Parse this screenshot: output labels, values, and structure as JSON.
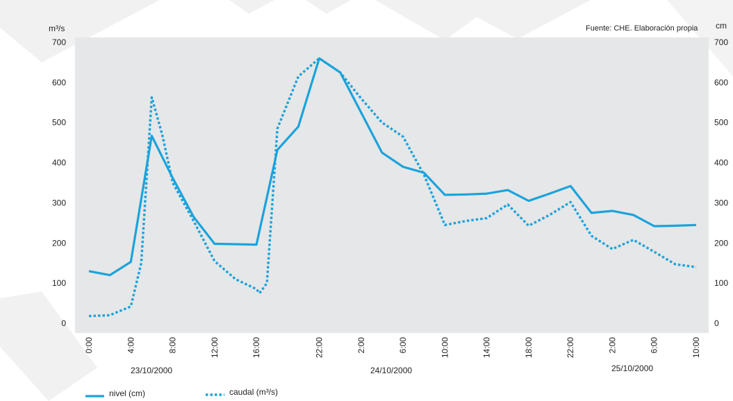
{
  "page": {
    "source": "Fuente: CHE. Elaboración propia"
  },
  "chart_data": {
    "type": "line",
    "left_axis_unit": "m³/s",
    "right_axis_unit": "cm",
    "ylim": [
      0,
      700
    ],
    "yticks": [
      0,
      100,
      200,
      300,
      400,
      500,
      600,
      700
    ],
    "x_tick_labels": [
      "0:00",
      "4:00",
      "8:00",
      "12:00",
      "16:00",
      "22:00",
      "2:00",
      "6:00",
      "10:00",
      "14:00",
      "18:00",
      "22:00",
      "2:00",
      "6:00",
      "10:00"
    ],
    "x_ticks_hours": [
      0,
      4,
      8,
      12,
      16,
      22,
      26,
      30,
      34,
      38,
      42,
      46,
      50,
      54,
      58
    ],
    "date_labels": [
      "23/10/2000",
      "24/10/2000",
      "25/10/2000"
    ],
    "grid": false,
    "series": [
      {
        "name": "nivel (cm)",
        "style": "solid",
        "color": "#1aa3dc",
        "x": [
          0,
          2,
          4,
          6,
          8,
          10,
          12,
          14,
          16,
          18,
          20,
          22,
          24,
          26,
          28,
          30,
          32,
          34,
          36,
          38,
          40,
          42,
          44,
          46,
          48,
          50,
          52,
          54,
          56,
          58
        ],
        "values": [
          130,
          120,
          153,
          467,
          362,
          265,
          198,
          197,
          196,
          432,
          490,
          660,
          625,
          525,
          425,
          390,
          375,
          320,
          321,
          323,
          332,
          305,
          323,
          342,
          275,
          280,
          270,
          242,
          243,
          245
        ]
      },
      {
        "name": "caudal (m³/s)",
        "style": "dotted",
        "color": "#1aa3dc",
        "x": [
          0,
          2,
          4,
          5,
          6,
          7,
          8,
          10,
          12,
          14,
          16,
          16.3,
          17,
          18,
          20,
          22,
          24,
          26,
          28,
          30,
          32,
          34,
          36,
          38,
          40,
          42,
          44,
          46,
          48,
          50,
          52,
          54,
          56,
          58
        ],
        "values": [
          18,
          20,
          42,
          150,
          563,
          470,
          350,
          255,
          155,
          110,
          85,
          75,
          100,
          485,
          615,
          660,
          625,
          560,
          500,
          465,
          370,
          245,
          255,
          262,
          296,
          243,
          270,
          302,
          218,
          185,
          208,
          178,
          147,
          140
        ]
      }
    ]
  }
}
